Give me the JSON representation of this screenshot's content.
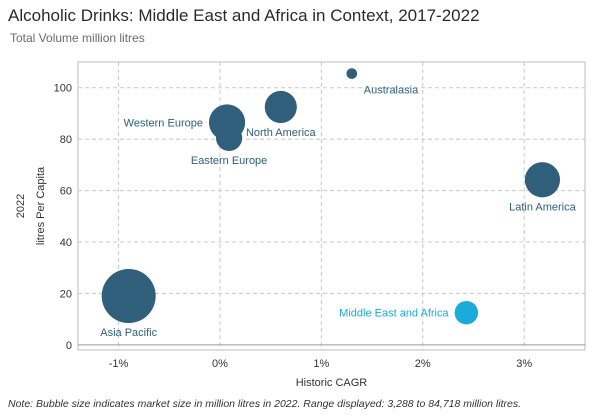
{
  "chart_data": {
    "type": "scatter",
    "title": "Alcoholic Drinks: Middle East and Africa in Context, 2017-2022",
    "subtitle": "Total Volume million litres",
    "xlabel": "Historic CAGR",
    "ylabel": "litres Per Capita",
    "ylabel_outer": "2022",
    "x_ticks": [
      "-1%",
      "0%",
      "1%",
      "2%",
      "3%"
    ],
    "x_tick_values": [
      -1,
      0,
      1,
      2,
      3
    ],
    "y_ticks": [
      "0",
      "20",
      "40",
      "60",
      "80",
      "100"
    ],
    "y_tick_values": [
      0,
      20,
      40,
      60,
      80,
      100
    ],
    "xlim": [
      -1.4,
      3.6
    ],
    "ylim": [
      -2,
      110
    ],
    "grid": true,
    "note": "Note: Bubble size indicates market size in million litres in 2022. Range displayed: 3,288 to 84,718 million litres.",
    "colors": {
      "default": "#2f5f7a",
      "highlight": "#1aabd8",
      "grid": "#c8c8c8"
    },
    "points": [
      {
        "name": "Australasia",
        "x": 1.3,
        "y": 105.5,
        "size": 3288,
        "label_pos": "below-right",
        "highlight": false
      },
      {
        "name": "Western Europe",
        "x": 0.07,
        "y": 86.5,
        "size": 38000,
        "label_pos": "left",
        "highlight": false
      },
      {
        "name": "Eastern Europe",
        "x": 0.09,
        "y": 80.5,
        "size": 20000,
        "label_pos": "below",
        "highlight": false
      },
      {
        "name": "North America",
        "x": 0.6,
        "y": 92.5,
        "size": 30000,
        "label_pos": "below",
        "highlight": false
      },
      {
        "name": "Latin America",
        "x": 3.18,
        "y": 64.2,
        "size": 36000,
        "label_pos": "below",
        "highlight": false
      },
      {
        "name": "Asia Pacific",
        "x": -0.9,
        "y": 19.0,
        "size": 84718,
        "label_pos": "below",
        "highlight": false
      },
      {
        "name": "Middle East and Africa",
        "x": 2.43,
        "y": 12.5,
        "size": 16000,
        "label_pos": "left",
        "highlight": true
      }
    ]
  }
}
